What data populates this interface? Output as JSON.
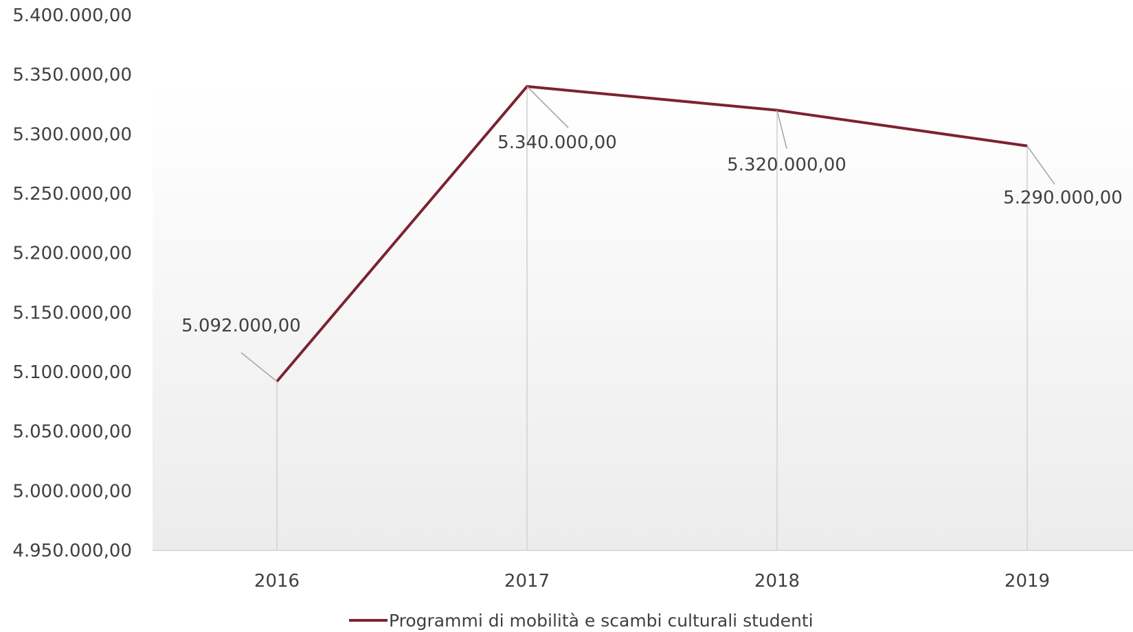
{
  "chart_data": {
    "type": "line",
    "title": "",
    "xlabel": "",
    "ylabel": "",
    "categories": [
      "2016",
      "2017",
      "2018",
      "2019"
    ],
    "series": [
      {
        "name": "Programmi di mobilità e scambi culturali studenti",
        "values": [
          5092000,
          5340000,
          5320000,
          5290000
        ],
        "data_labels": [
          "5.092.000,00",
          "5.340.000,00",
          "5.320.000,00",
          "5.290.000,00"
        ],
        "color": "#7b2230"
      }
    ],
    "y_ticks": [
      "4.950.000,00",
      "5.000.000,00",
      "5.050.000,00",
      "5.100.000,00",
      "5.150.000,00",
      "5.200.000,00",
      "5.250.000,00",
      "5.300.000,00",
      "5.350.000,00",
      "5.400.000,00"
    ],
    "ylim": [
      4950000,
      5400000
    ],
    "grid": "vertical drop lines",
    "legend_position": "bottom",
    "colors": {
      "line": "#7b2230",
      "axis": "#d9d9d9",
      "text": "#404040",
      "plot_gradient_top": "#ffffff",
      "plot_gradient_bottom": "#ececec"
    }
  }
}
